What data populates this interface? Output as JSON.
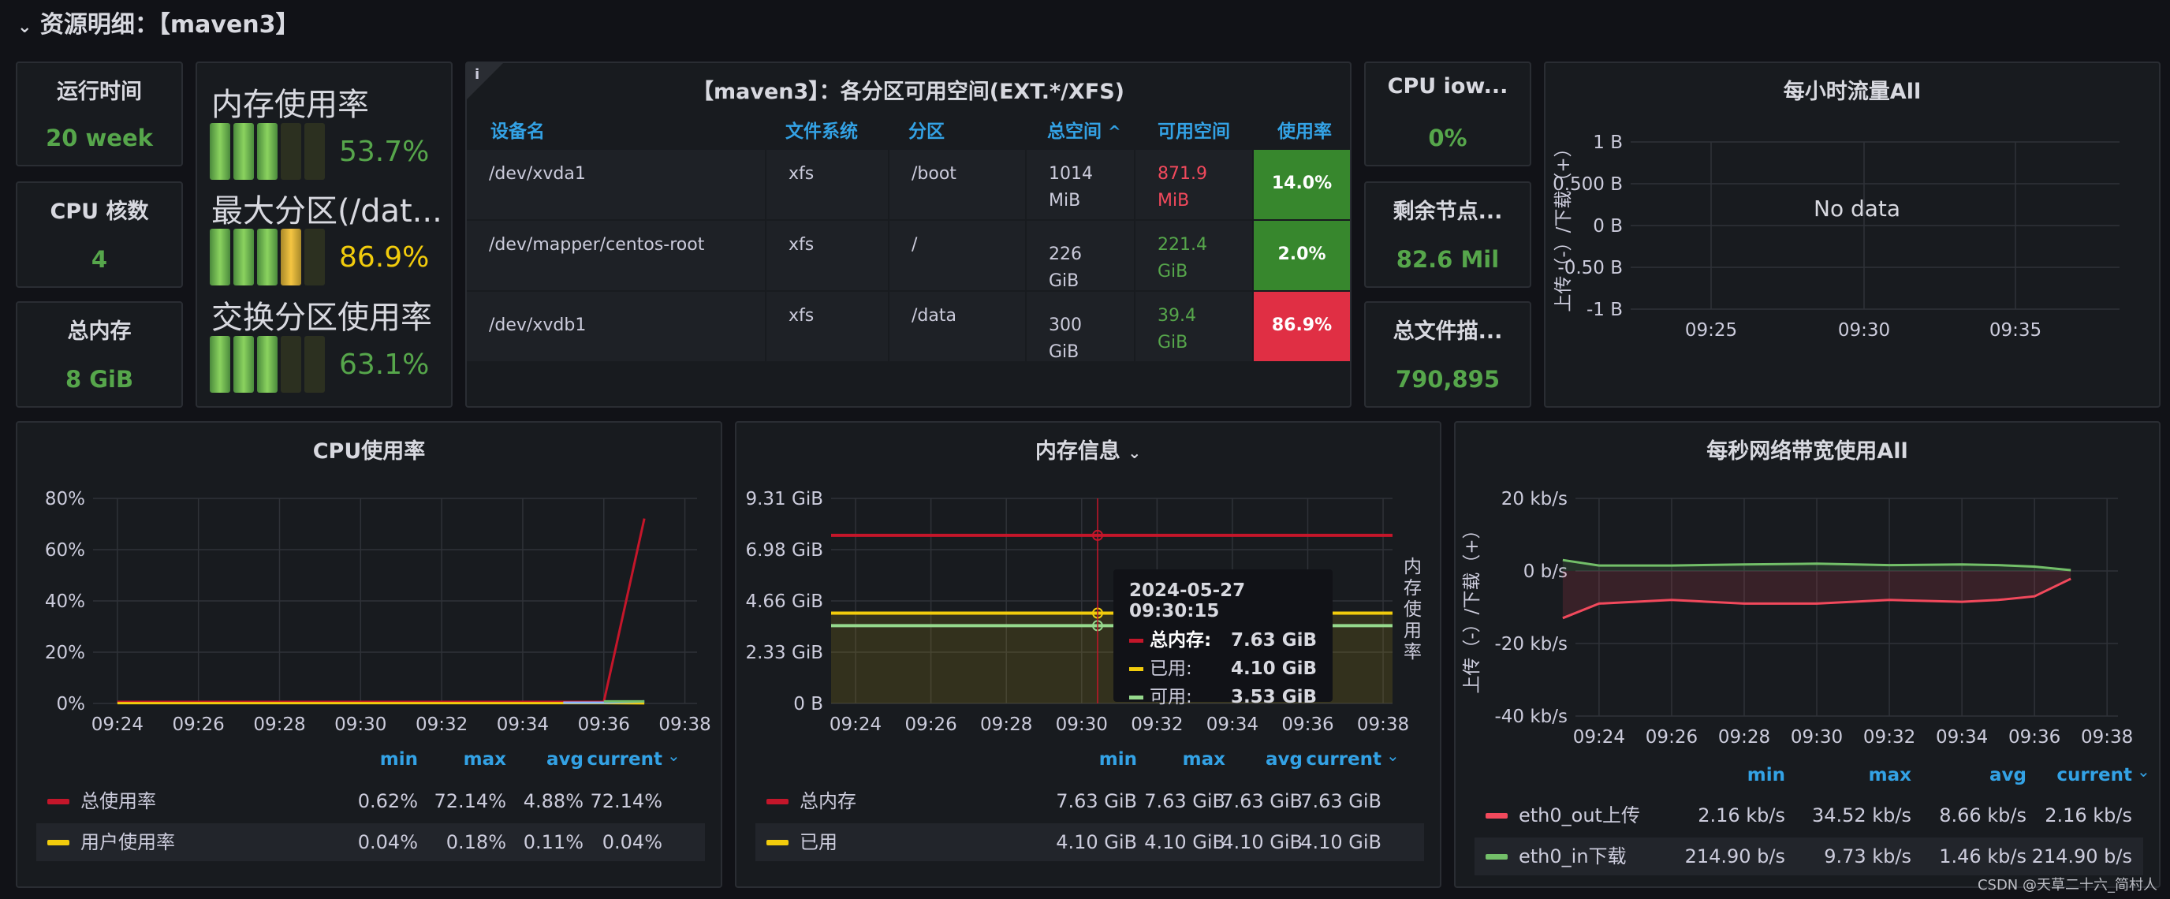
{
  "section": {
    "title": "资源明细：【maven3】"
  },
  "stats": {
    "uptime": {
      "label": "运行时间",
      "value": "20 week"
    },
    "cpu_cores": {
      "label": "CPU 核数",
      "value": "4"
    },
    "total_mem": {
      "label": "总内存",
      "value": "8 GiB"
    },
    "cpu_iowait": {
      "label": "CPU iow...",
      "value": "0%"
    },
    "free_inodes": {
      "label": "剩余节点...",
      "value": "82.6 Mil"
    },
    "total_fd": {
      "label": "总文件描...",
      "value": "790,895"
    }
  },
  "gauges": [
    {
      "label": "内存使用率",
      "value": "53.7%",
      "level": 0.537,
      "color": "#73bf69"
    },
    {
      "label": "最大分区(/dat...",
      "value": "86.9%",
      "level": 0.869,
      "color": "#f2cc0c"
    },
    {
      "label": "交换分区使用率",
      "value": "63.1%",
      "level": 0.631,
      "color": "#73bf69"
    }
  ],
  "disk_table": {
    "title": "【maven3】：各分区可用空间(EXT.*/XFS)",
    "info_icon": "i",
    "headers": [
      "设备名",
      "文件系统",
      "分区",
      "总空间",
      "可用空间",
      "使用率"
    ],
    "sort_indicator": "^",
    "rows": [
      {
        "device": "/dev/xvda1",
        "fs": "xfs",
        "mount": "/boot",
        "total": "1014 MiB",
        "free": "871.9 MiB",
        "free_color": "#f2495c",
        "usage": "14.0%",
        "usage_color": "#37872d"
      },
      {
        "device": "/dev/mapper/centos-root",
        "fs": "xfs",
        "mount": "/",
        "total": "226 GiB",
        "free": "221.4 GiB",
        "free_color": "#56a64b",
        "usage": "2.0%",
        "usage_color": "#37872d"
      },
      {
        "device": "/dev/xvdb1",
        "fs": "xfs",
        "mount": "/data",
        "total": "300 GiB",
        "free": "39.4 GiB",
        "free_color": "#56a64b",
        "usage": "86.9%",
        "usage_color": "#e02f44"
      }
    ]
  },
  "hourly_traffic": {
    "title": "每小时流量All",
    "no_data": "No data",
    "ylabel": "上传（-）/下载（+）",
    "chart_data": {
      "type": "line",
      "title": "每小时流量All",
      "ylabel": "上传（-）/下载（+）",
      "y_ticks": [
        "1 B",
        "0.500 B",
        "0 B",
        "-0.50 B",
        "-1 B"
      ],
      "x_ticks": [
        "09:25",
        "09:30",
        "09:35"
      ],
      "ylim": [
        -1,
        1
      ],
      "series": []
    }
  },
  "cpu_chart": {
    "title": "CPU使用率",
    "legend_headers": [
      "min",
      "max",
      "avg",
      "current"
    ],
    "legend": [
      {
        "name": "总使用率",
        "color": "#c4162a",
        "min": "0.62%",
        "max": "72.14%",
        "avg": "4.88%",
        "current": "72.14%"
      },
      {
        "name": "用户使用率",
        "color": "#f2cc0c",
        "min": "0.04%",
        "max": "0.18%",
        "avg": "0.11%",
        "current": "0.04%"
      }
    ],
    "chart_data": {
      "type": "line",
      "title": "CPU使用率",
      "y_ticks": [
        "80%",
        "60%",
        "40%",
        "20%",
        "0%"
      ],
      "x_ticks": [
        "09:24",
        "09:26",
        "09:28",
        "09:30",
        "09:32",
        "09:34",
        "09:36",
        "09:38"
      ],
      "ylim": [
        0,
        80
      ],
      "series": [
        {
          "name": "总使用率",
          "color": "#c4162a",
          "x": [
            "09:24",
            "09:30",
            "09:35",
            "09:36",
            "09:37"
          ],
          "values": [
            0.62,
            0.62,
            0.62,
            0.62,
            72.14
          ]
        },
        {
          "name": "用户使用率",
          "color": "#f2cc0c",
          "x": [
            "09:24",
            "09:30",
            "09:35",
            "09:36",
            "09:37"
          ],
          "values": [
            0.1,
            0.1,
            0.1,
            0.1,
            0.04
          ]
        },
        {
          "color": "#8ab8ff",
          "x": [
            "09:35",
            "09:36",
            "09:37"
          ],
          "values": [
            0.3,
            0.3,
            0.8
          ]
        },
        {
          "color": "#73bf69",
          "x": [
            "09:36",
            "09:37"
          ],
          "values": [
            0.8,
            0.8
          ]
        }
      ]
    }
  },
  "mem_chart": {
    "title": "内存信息",
    "right_label": "内存使用率",
    "legend_headers": [
      "min",
      "max",
      "avg",
      "current"
    ],
    "legend": [
      {
        "name": "总内存",
        "color": "#c4162a",
        "min": "7.63 GiB",
        "max": "7.63 GiB",
        "avg": "7.63 GiB",
        "current": "7.63 GiB"
      },
      {
        "name": "已用",
        "color": "#f2cc0c",
        "min": "4.10 GiB",
        "max": "4.10 GiB",
        "avg": "4.10 GiB",
        "current": "4.10 GiB"
      }
    ],
    "tooltip": {
      "time": "2024-05-27 09:30:15",
      "rows": [
        {
          "name": "总内存:",
          "value": "7.63 GiB",
          "color": "#c4162a"
        },
        {
          "name": "已用:",
          "value": "4.10 GiB",
          "color": "#f2cc0c"
        },
        {
          "name": "可用:",
          "value": "3.53 GiB",
          "color": "#96d98d"
        }
      ]
    },
    "chart_data": {
      "type": "line",
      "title": "内存信息",
      "y_ticks": [
        "9.31 GiB",
        "6.98 GiB",
        "4.66 GiB",
        "2.33 GiB",
        "0 B"
      ],
      "x_ticks": [
        "09:24",
        "09:26",
        "09:28",
        "09:30",
        "09:32",
        "09:34",
        "09:36",
        "09:38"
      ],
      "ylim": [
        0,
        9.31
      ],
      "series": [
        {
          "name": "总内存",
          "color": "#c4162a",
          "values": [
            7.63,
            7.63
          ]
        },
        {
          "name": "已用",
          "color": "#f2cc0c",
          "values": [
            4.1,
            4.1
          ]
        },
        {
          "name": "可用",
          "color": "#96d98d",
          "values": [
            3.53,
            3.53
          ]
        }
      ]
    }
  },
  "net_chart": {
    "title": "每秒网络带宽使用All",
    "ylabel": "上传（-）/下载（+）",
    "legend_headers": [
      "min",
      "max",
      "avg",
      "current"
    ],
    "legend": [
      {
        "name": "eth0_out上传",
        "color": "#f2495c",
        "min": "2.16 kb/s",
        "max": "34.52 kb/s",
        "avg": "8.66 kb/s",
        "current": "2.16 kb/s"
      },
      {
        "name": "eth0_in下载",
        "color": "#73bf69",
        "min": "214.90 b/s",
        "max": "9.73 kb/s",
        "avg": "1.46 kb/s",
        "current": "214.90 b/s"
      }
    ],
    "chart_data": {
      "type": "area",
      "title": "每秒网络带宽使用All",
      "ylabel": "上传（-）/下载（+）",
      "y_ticks": [
        "20 kb/s",
        "0 b/s",
        "-20 kb/s",
        "-40 kb/s"
      ],
      "x_ticks": [
        "09:24",
        "09:26",
        "09:28",
        "09:30",
        "09:32",
        "09:34",
        "09:36",
        "09:38"
      ],
      "ylim": [
        -40,
        20
      ],
      "series": [
        {
          "name": "eth0_out上传",
          "color": "#f2495c",
          "x": [
            "09:23",
            "09:24",
            "09:26",
            "09:28",
            "09:30",
            "09:32",
            "09:34",
            "09:35",
            "09:36",
            "09:37"
          ],
          "values": [
            -13,
            -9,
            -8,
            -9,
            -9,
            -8,
            -8.5,
            -8,
            -7,
            -2.16
          ]
        },
        {
          "name": "eth0_in下载",
          "color": "#73bf69",
          "x": [
            "09:23",
            "09:24",
            "09:26",
            "09:28",
            "09:30",
            "09:32",
            "09:34",
            "09:35",
            "09:36",
            "09:37"
          ],
          "values": [
            3,
            1.5,
            1.5,
            1.8,
            2,
            1.6,
            1.8,
            1.6,
            1.2,
            0.21
          ]
        }
      ]
    }
  },
  "watermark": "CSDN @天草二十六_简村人"
}
